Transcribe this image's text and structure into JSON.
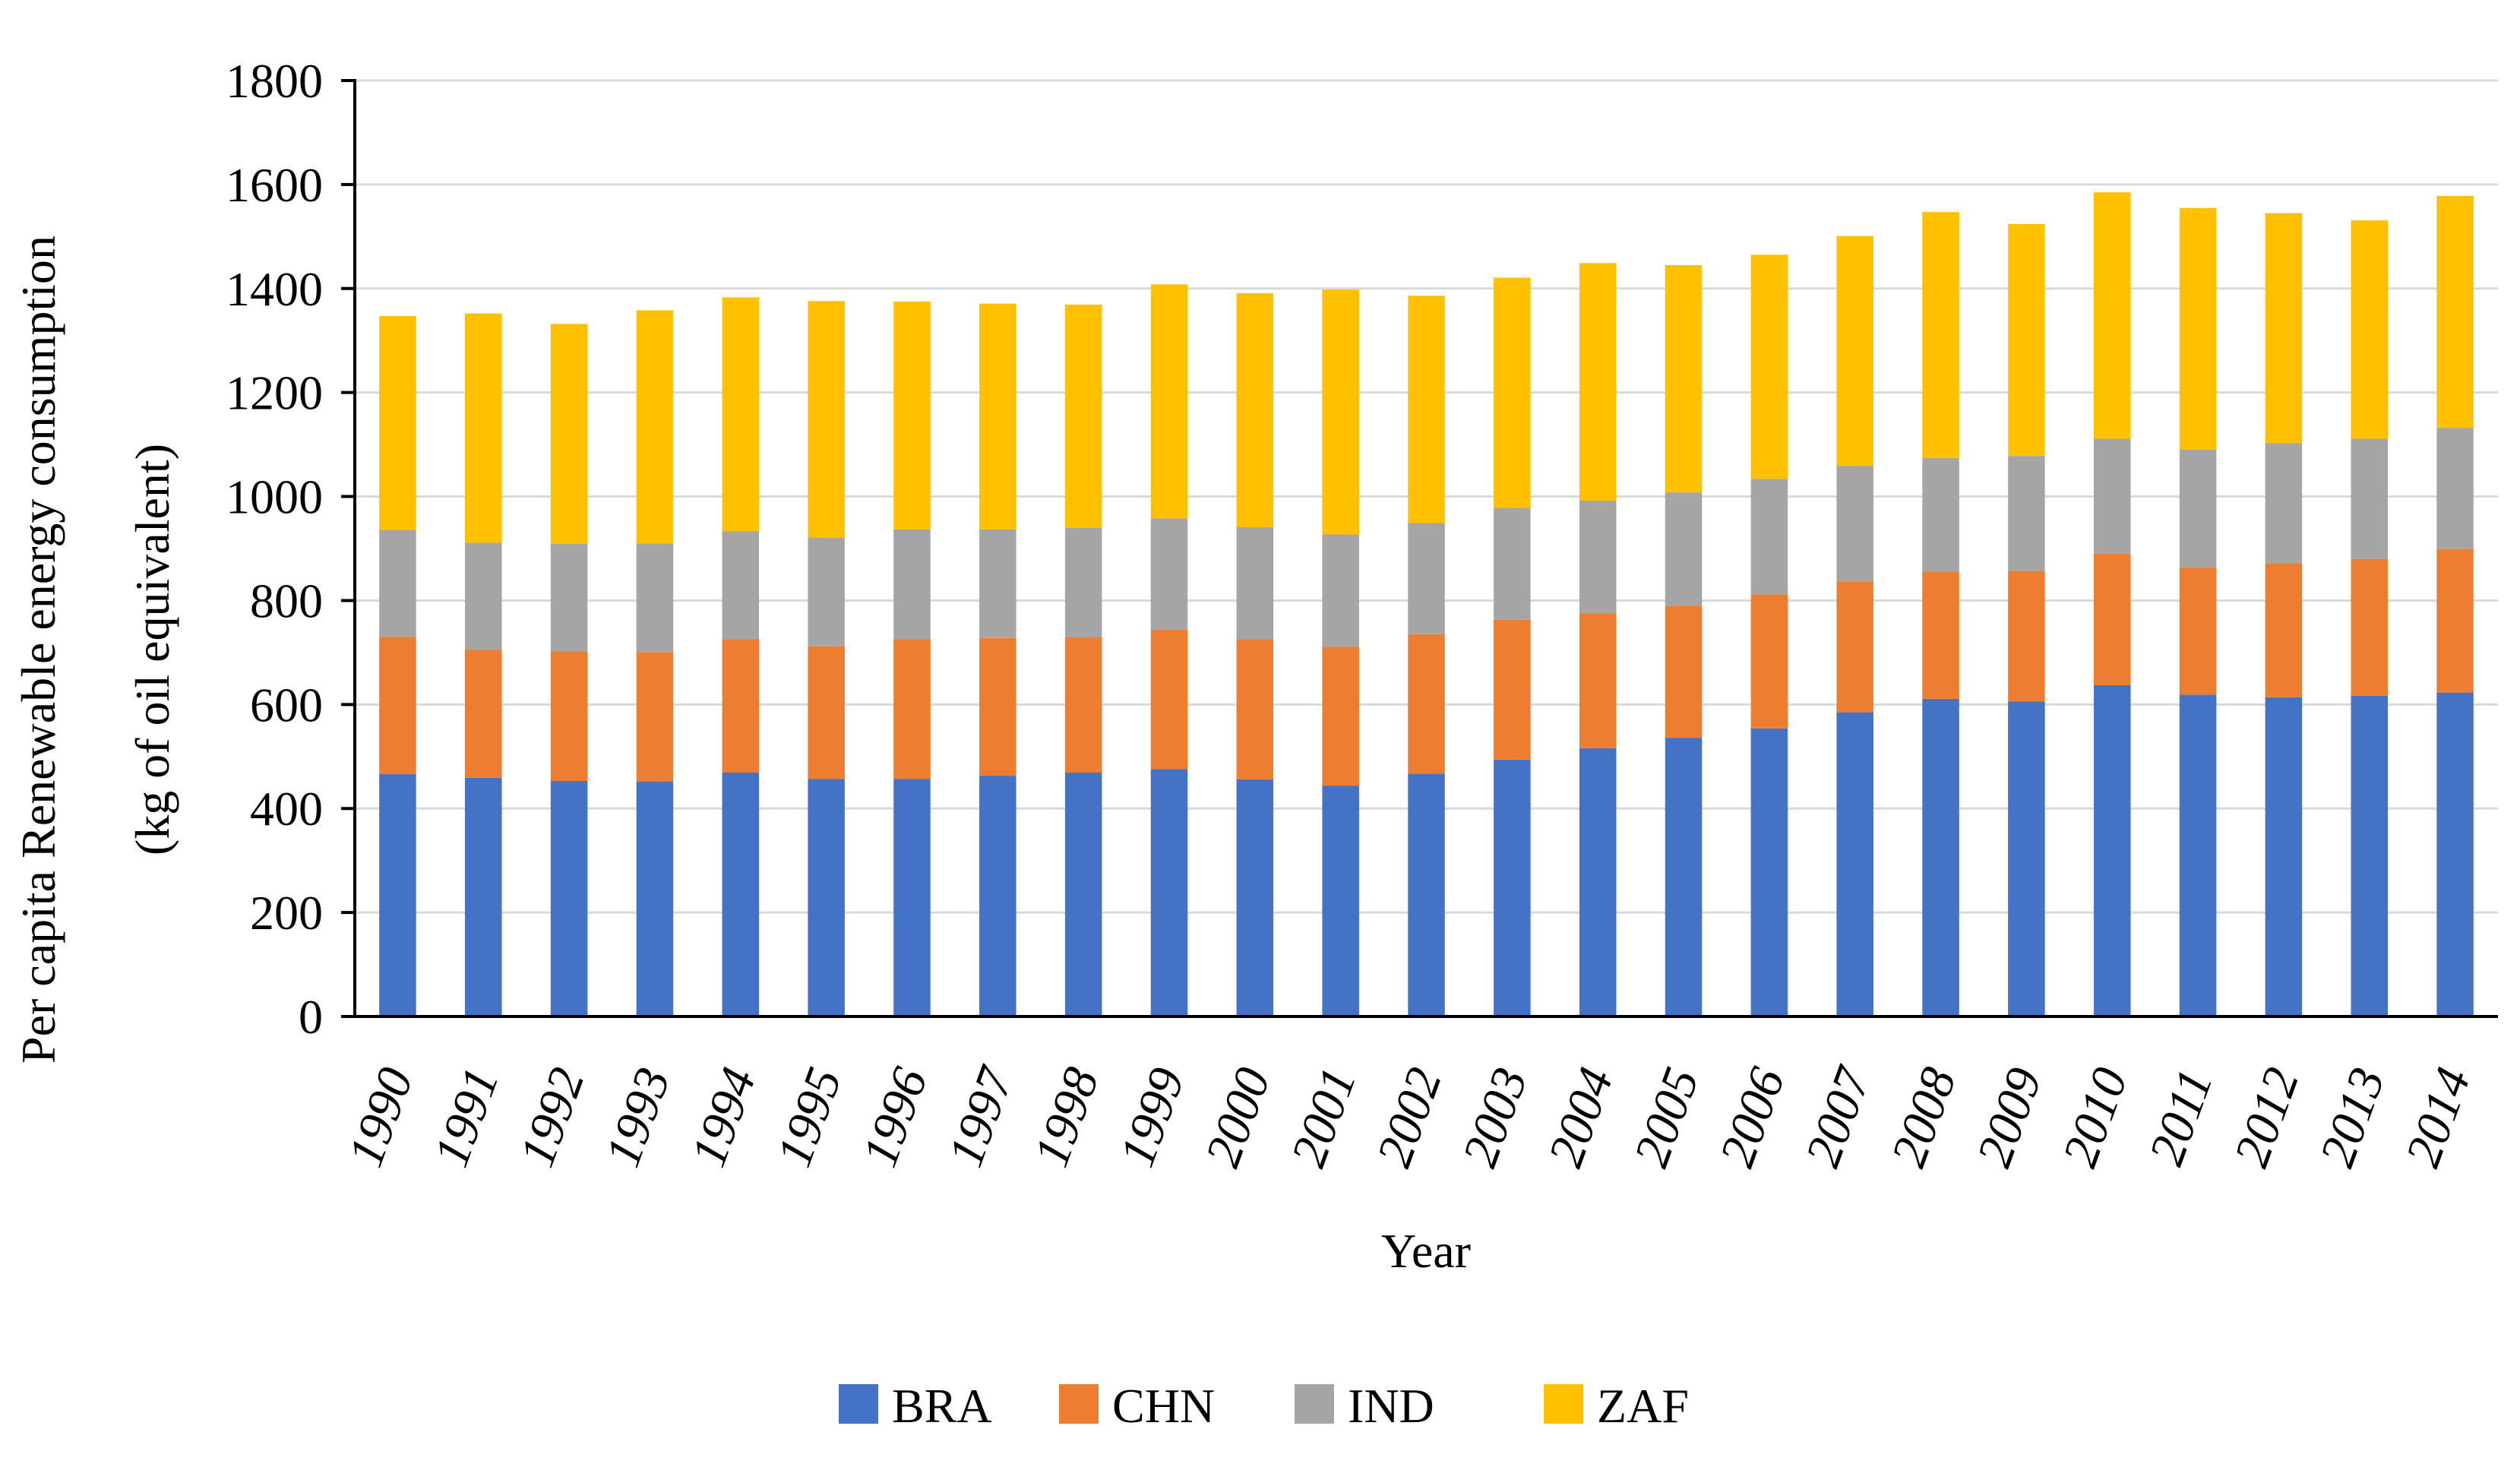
{
  "chart_data": {
    "type": "bar",
    "stacked": true,
    "title": "",
    "xlabel": "Year",
    "ylabel_line1": "Per capita Renewable energy consumption",
    "ylabel_line2": "(kg of oil equivalent)",
    "ylim": [
      0,
      1800
    ],
    "yticks": [
      0,
      200,
      400,
      600,
      800,
      1000,
      1200,
      1400,
      1600,
      1800
    ],
    "grid": true,
    "legend_position": "bottom-center",
    "categories": [
      "1990",
      "1991",
      "1992",
      "1993",
      "1994",
      "1995",
      "1996",
      "1997",
      "1998",
      "1999",
      "2000",
      "2001",
      "2002",
      "2003",
      "2004",
      "2005",
      "2006",
      "2007",
      "2008",
      "2009",
      "2010",
      "2011",
      "2012",
      "2013",
      "2014"
    ],
    "series": [
      {
        "name": "BRA",
        "color": "#4472C4",
        "values": [
          466,
          459,
          453,
          452,
          469,
          457,
          457,
          463,
          469,
          476,
          456,
          444,
          467,
          494,
          516,
          536,
          554,
          585,
          611,
          606,
          637,
          619,
          614,
          617,
          623
        ]
      },
      {
        "name": "CHN",
        "color": "#ED7D31",
        "values": [
          264,
          246,
          249,
          249,
          257,
          255,
          269,
          265,
          260,
          268,
          270,
          267,
          268,
          269,
          259,
          254,
          258,
          252,
          245,
          251,
          253,
          245,
          258,
          263,
          276
        ]
      },
      {
        "name": "IND",
        "color": "#A5A5A5",
        "values": [
          206,
          206,
          207,
          209,
          207,
          209,
          211,
          209,
          211,
          214,
          215,
          216,
          214,
          215,
          217,
          218,
          222,
          222,
          218,
          221,
          221,
          226,
          231,
          231,
          233
        ]
      },
      {
        "name": "ZAF",
        "color": "#FFC000",
        "values": [
          411,
          441,
          423,
          448,
          450,
          455,
          438,
          434,
          429,
          450,
          450,
          471,
          437,
          443,
          457,
          437,
          431,
          442,
          473,
          446,
          474,
          465,
          442,
          420,
          446
        ]
      }
    ]
  }
}
